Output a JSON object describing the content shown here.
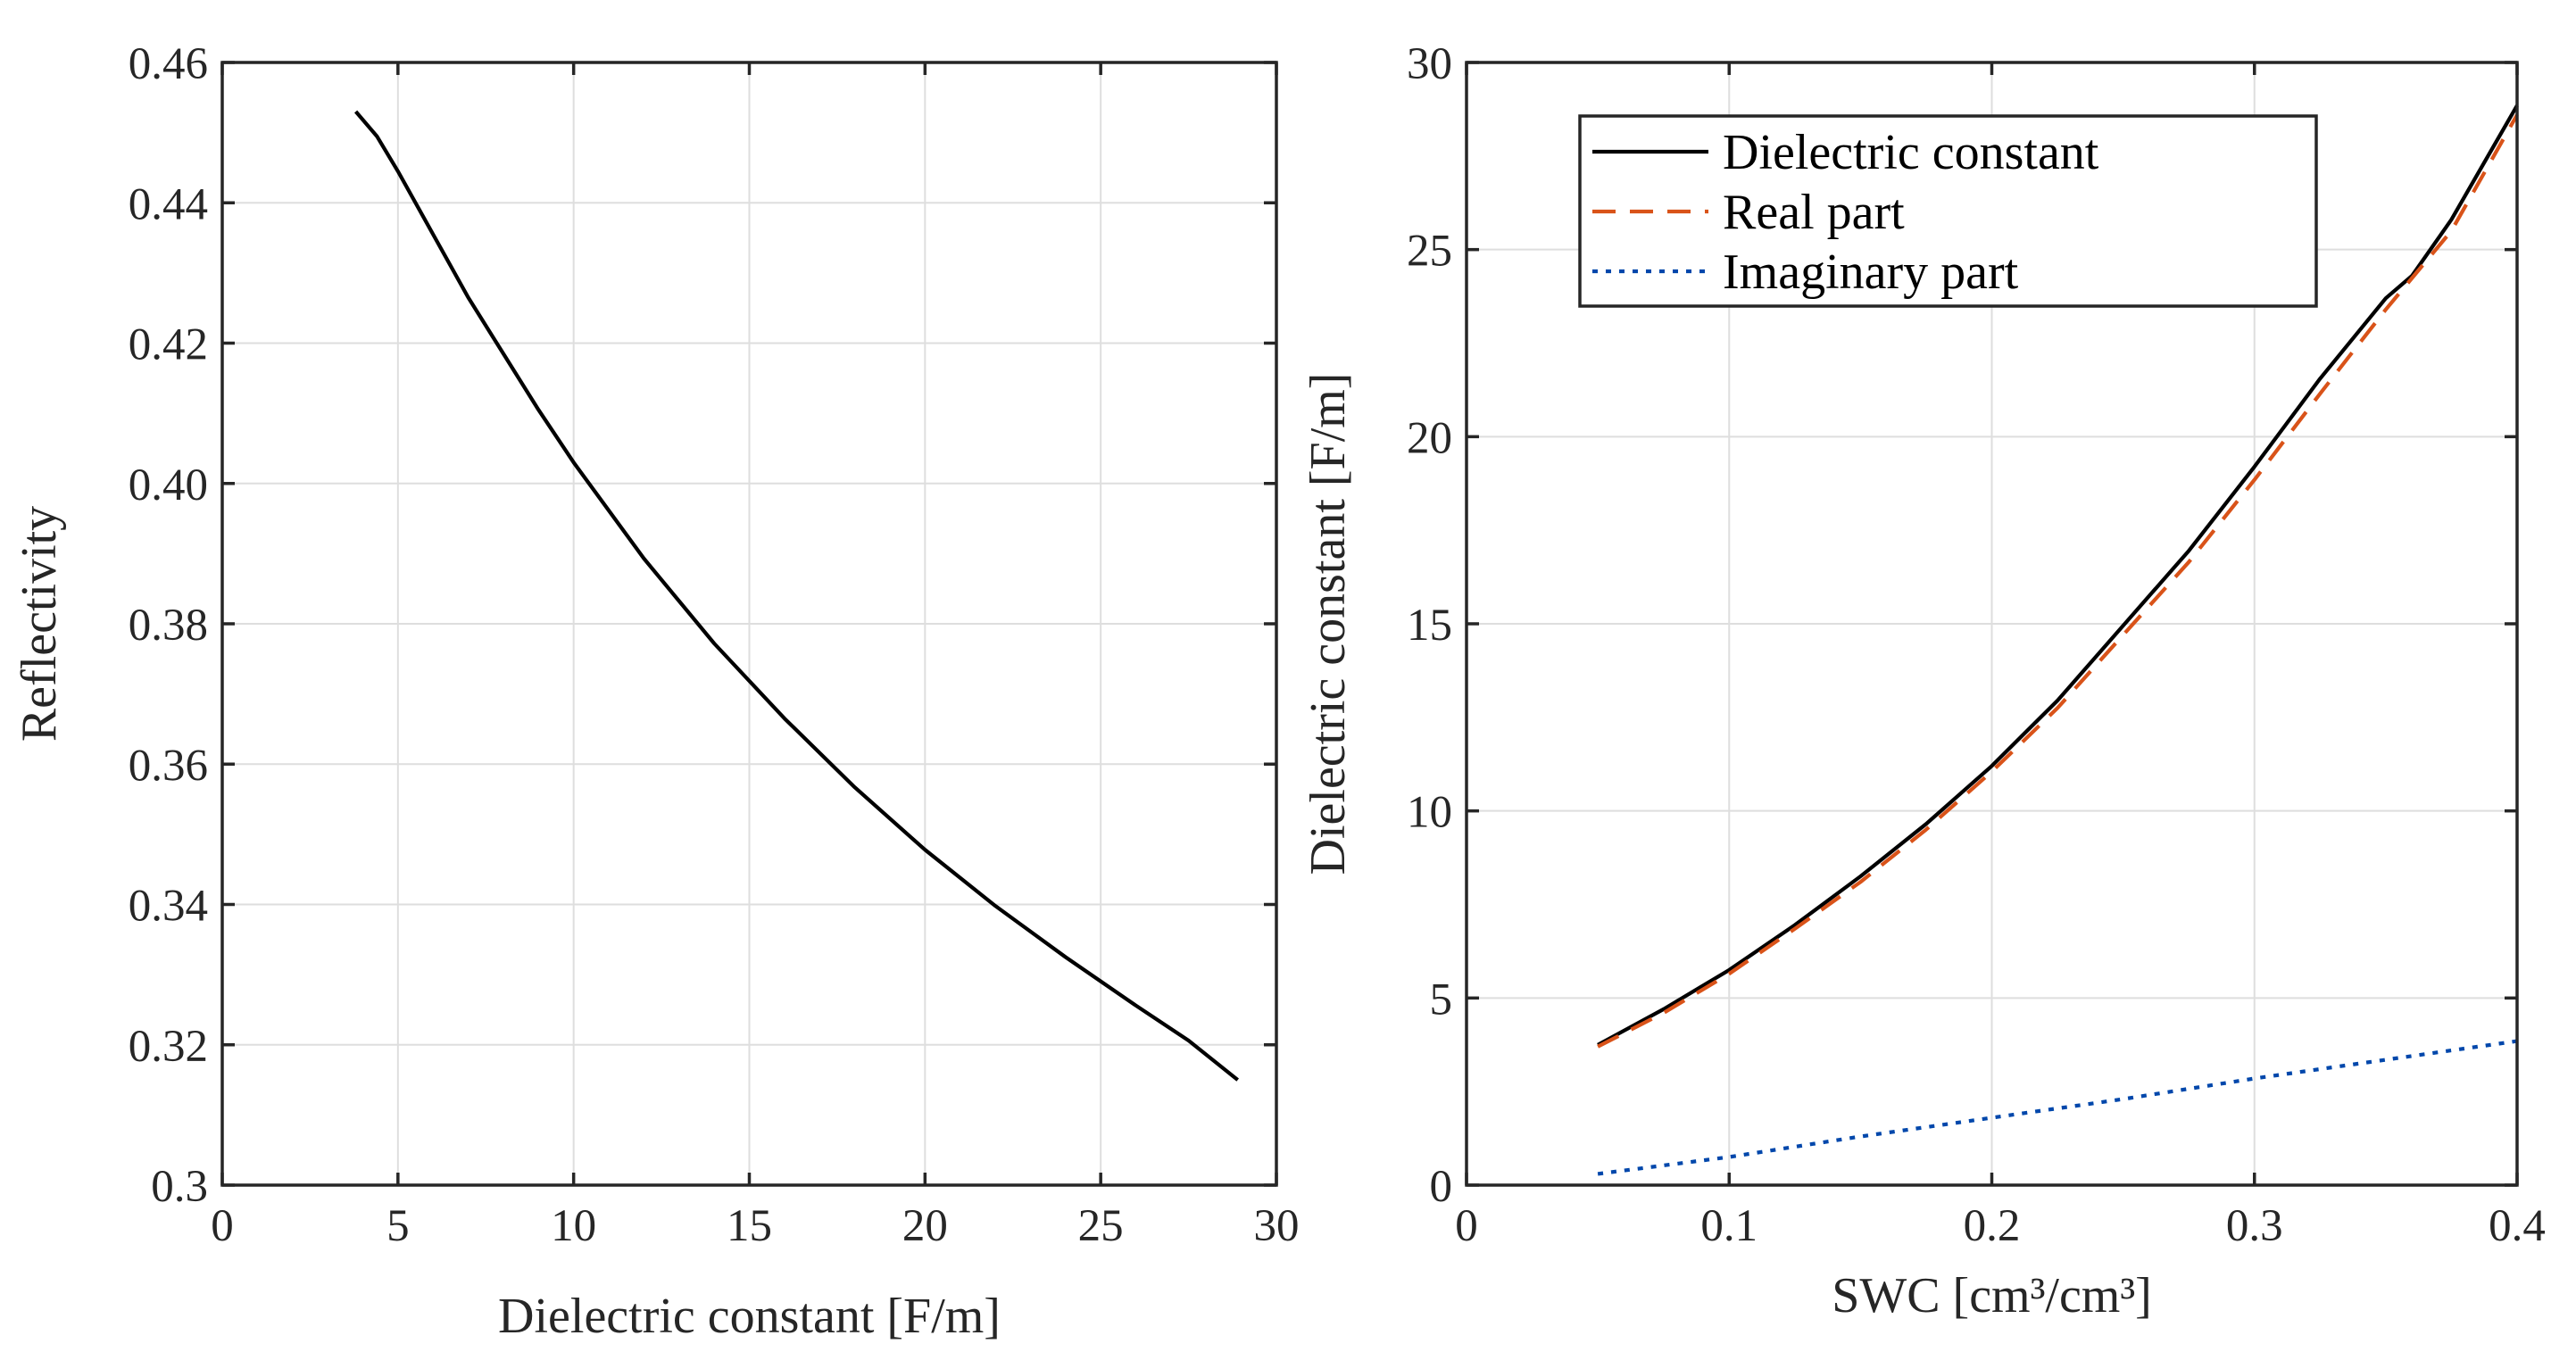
{
  "chart_data": [
    {
      "type": "line",
      "xlabel": "Dielectric constant [F/m]",
      "ylabel": "Reflectivity",
      "xlim": [
        0,
        30
      ],
      "ylim": [
        0.3,
        0.46
      ],
      "xticks": [
        0,
        5,
        10,
        15,
        20,
        25,
        30
      ],
      "xtick_labels": [
        "0",
        "5",
        "10",
        "15",
        "20",
        "25",
        "30"
      ],
      "yticks": [
        0.3,
        0.32,
        0.34,
        0.36,
        0.38,
        0.4,
        0.42,
        0.44,
        0.46
      ],
      "ytick_labels": [
        "0.3",
        "0.32",
        "0.34",
        "0.36",
        "0.38",
        "0.40",
        "0.42",
        "0.44",
        "0.46"
      ],
      "grid": true,
      "series": [
        {
          "name": "Reflectivity",
          "color": "#000000",
          "style": "solid",
          "x": [
            3.8,
            4.4,
            5,
            6,
            7,
            8,
            9,
            10,
            12,
            14,
            16,
            18,
            20,
            22,
            24,
            26,
            27.5,
            28.9
          ],
          "y": [
            0.453,
            0.4495,
            0.4445,
            0.4355,
            0.4265,
            0.4185,
            0.4105,
            0.403,
            0.3893,
            0.3772,
            0.3665,
            0.3567,
            0.3478,
            0.3398,
            0.3325,
            0.3256,
            0.3206,
            0.315
          ]
        }
      ]
    },
    {
      "type": "line",
      "xlabel": "SWC [cm³/cm³]",
      "ylabel": "Dielectric constant [F/m]",
      "xlim": [
        0,
        0.4
      ],
      "ylim": [
        0,
        30
      ],
      "xticks": [
        0,
        0.1,
        0.2,
        0.3,
        0.4
      ],
      "xtick_labels": [
        "0",
        "0.1",
        "0.2",
        "0.3",
        "0.4"
      ],
      "yticks": [
        0,
        5,
        10,
        15,
        20,
        25,
        30
      ],
      "ytick_labels": [
        "0",
        "5",
        "10",
        "15",
        "20",
        "25",
        "30"
      ],
      "grid": true,
      "legend": "top-left",
      "series": [
        {
          "name": "Dielectric constant",
          "color": "#000000",
          "style": "solid",
          "x": [
            0.05,
            0.075,
            0.1,
            0.125,
            0.15,
            0.175,
            0.2,
            0.225,
            0.25,
            0.275,
            0.3,
            0.325,
            0.35,
            0.36,
            0.375,
            0.4
          ],
          "y": [
            3.75,
            4.7,
            5.75,
            6.95,
            8.25,
            9.65,
            11.2,
            12.95,
            14.95,
            16.95,
            19.2,
            21.55,
            23.7,
            24.3,
            25.8,
            28.85
          ]
        },
        {
          "name": "Real part",
          "color": "#d95319",
          "style": "dashed",
          "x": [
            0.05,
            0.075,
            0.1,
            0.125,
            0.15,
            0.175,
            0.2,
            0.225,
            0.25,
            0.275,
            0.3,
            0.325,
            0.35,
            0.375,
            0.4
          ],
          "y": [
            3.7,
            4.6,
            5.65,
            6.85,
            8.1,
            9.5,
            11.05,
            12.75,
            14.7,
            16.65,
            18.85,
            21.15,
            23.4,
            25.5,
            28.6
          ]
        },
        {
          "name": "Imaginary part",
          "color": "#0047ab",
          "style": "dotted",
          "x": [
            0.05,
            0.1,
            0.15,
            0.2,
            0.25,
            0.3,
            0.35,
            0.4
          ],
          "y": [
            0.3,
            0.75,
            1.3,
            1.8,
            2.3,
            2.85,
            3.35,
            3.85
          ]
        }
      ]
    }
  ]
}
